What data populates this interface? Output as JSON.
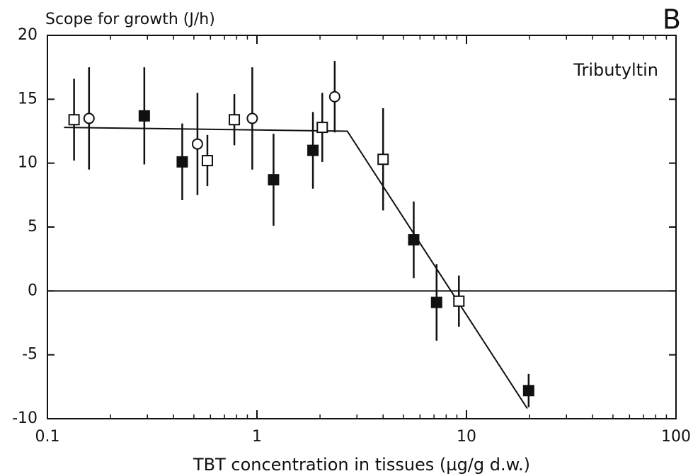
{
  "chart_data": {
    "type": "scatter",
    "title": "Scope for growth (J/h)",
    "panel_label": "B",
    "annotation": "Tributyltin",
    "x_label": "TBT concentration in tissues (µg/g d.w.)",
    "xscale": "log",
    "xlim": [
      0.1,
      100
    ],
    "xticks": [
      0.1,
      1,
      10,
      100
    ],
    "xminorticks": [
      0.2,
      0.3,
      0.4,
      0.5,
      0.6,
      0.7,
      0.8,
      0.9,
      2,
      3,
      4,
      5,
      6,
      7,
      8,
      9,
      20,
      30,
      40,
      50,
      60,
      70,
      80,
      90
    ],
    "ylim": [
      -10,
      20
    ],
    "yticks": [
      -10,
      -5,
      0,
      5,
      10,
      15,
      20
    ],
    "hline": 0,
    "fit_line": {
      "x": [
        0.12,
        2.7,
        19.5
      ],
      "y": [
        12.8,
        12.5,
        -9.2
      ]
    },
    "series": [
      {
        "marker": "open-square",
        "color": "#111111",
        "x": [
          0.134,
          0.58,
          0.78,
          2.05,
          4.0,
          9.2
        ],
        "values": [
          13.4,
          10.2,
          13.4,
          12.8,
          10.3,
          -0.8
        ],
        "errors": [
          3.2,
          2.0,
          2.0,
          2.7,
          4.0,
          2.0
        ]
      },
      {
        "marker": "open-circle",
        "color": "#111111",
        "x": [
          0.158,
          0.52,
          0.95,
          2.35
        ],
        "values": [
          13.5,
          11.5,
          13.5,
          15.2
        ],
        "errors": [
          4.0,
          4.0,
          4.0,
          2.8
        ]
      },
      {
        "marker": "filled-square",
        "color": "#111111",
        "x": [
          0.29,
          0.44,
          1.2,
          1.85,
          5.6,
          7.2,
          19.8
        ],
        "values": [
          13.7,
          10.1,
          8.7,
          11.0,
          4.0,
          -0.9,
          -7.8
        ],
        "errors": [
          3.8,
          3.0,
          3.6,
          3.0,
          3.0,
          3.0,
          1.3
        ]
      }
    ]
  }
}
